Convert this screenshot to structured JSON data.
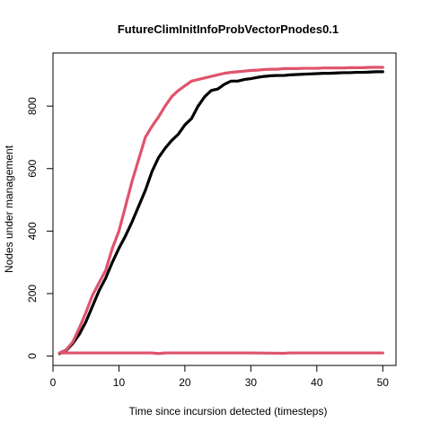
{
  "chart_data": {
    "type": "line",
    "title": "FutureClimInitInfoProbVectorPnodes0.1",
    "xlabel": "Time since incursion detected (timesteps)",
    "ylabel": "Nodes under management",
    "xlim": [
      0,
      52
    ],
    "ylim": [
      -30,
      970
    ],
    "xticks": [
      0,
      10,
      20,
      30,
      40,
      50
    ],
    "yticks": [
      0,
      200,
      400,
      600,
      800
    ],
    "grid": false,
    "legend": "none",
    "series": [
      {
        "color": "#000000",
        "x": [
          1,
          2,
          3,
          4,
          5,
          6,
          7,
          8,
          9,
          10,
          11,
          12,
          13,
          14,
          15,
          16,
          17,
          18,
          19,
          20,
          21,
          22,
          23,
          24,
          25,
          26,
          27,
          28,
          29,
          30,
          31,
          32,
          33,
          34,
          35,
          36,
          37,
          38,
          39,
          40,
          41,
          42,
          43,
          44,
          45,
          46,
          47,
          48,
          49,
          50
        ],
        "y": [
          8,
          18,
          40,
          70,
          110,
          160,
          210,
          250,
          300,
          345,
          385,
          430,
          480,
          530,
          590,
          635,
          665,
          690,
          710,
          740,
          760,
          800,
          830,
          850,
          855,
          870,
          880,
          880,
          885,
          888,
          892,
          895,
          897,
          898,
          898,
          900,
          901,
          902,
          903,
          904,
          905,
          905,
          906,
          907,
          907,
          908,
          908,
          909,
          910,
          910
        ]
      },
      {
        "color": "#DF536B",
        "x": [
          1,
          2,
          3,
          4,
          5,
          6,
          7,
          8,
          9,
          10,
          11,
          12,
          13,
          14,
          15,
          16,
          17,
          18,
          19,
          20,
          21,
          22,
          23,
          24,
          25,
          26,
          27,
          28,
          29,
          30,
          31,
          32,
          33,
          34,
          35,
          36,
          37,
          38,
          39,
          40,
          41,
          42,
          43,
          44,
          45,
          46,
          47,
          48,
          49,
          50
        ],
        "y": [
          10,
          20,
          45,
          90,
          140,
          195,
          235,
          275,
          345,
          400,
          480,
          560,
          630,
          700,
          735,
          765,
          800,
          830,
          850,
          865,
          880,
          885,
          890,
          895,
          900,
          905,
          908,
          910,
          912,
          914,
          915,
          917,
          918,
          918,
          920,
          920,
          920,
          921,
          921,
          921,
          922,
          922,
          922,
          922,
          923,
          923,
          923,
          924,
          924,
          924
        ]
      },
      {
        "color": "#DF536B",
        "x": [
          1,
          5,
          10,
          15,
          16,
          17,
          20,
          25,
          30,
          35,
          36,
          40,
          45,
          50
        ],
        "y": [
          10,
          10,
          10,
          10,
          8,
          10,
          10,
          10,
          10,
          9,
          10,
          10,
          10,
          10
        ]
      }
    ]
  }
}
